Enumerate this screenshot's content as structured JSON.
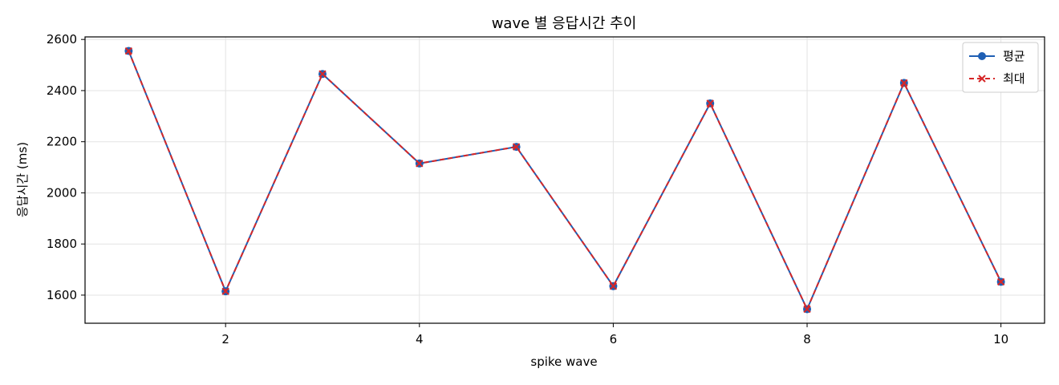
{
  "chart_data": {
    "type": "line",
    "title": "wave 별 응답시간 추이",
    "xlabel": "spike wave",
    "ylabel": "응답시간 (ms)",
    "x": [
      1,
      2,
      3,
      4,
      5,
      6,
      7,
      8,
      9,
      10
    ],
    "xlim": [
      0.55,
      10.45
    ],
    "ylim": [
      1490,
      2610
    ],
    "x_ticks": [
      2,
      4,
      6,
      8,
      10
    ],
    "y_ticks": [
      1600,
      1800,
      2000,
      2200,
      2400,
      2600
    ],
    "grid": true,
    "legend_position": "top-right",
    "series": [
      {
        "name": "평균",
        "values": [
          2555,
          1615,
          2465,
          2115,
          2180,
          1635,
          2350,
          1545,
          2430,
          1652
        ],
        "color": "#1f5fb4",
        "line_style": "solid",
        "marker": "circle"
      },
      {
        "name": "최대",
        "values": [
          2555,
          1615,
          2465,
          2115,
          2180,
          1635,
          2350,
          1545,
          2430,
          1652
        ],
        "color": "#d62728",
        "line_style": "dashed",
        "marker": "x"
      }
    ]
  }
}
